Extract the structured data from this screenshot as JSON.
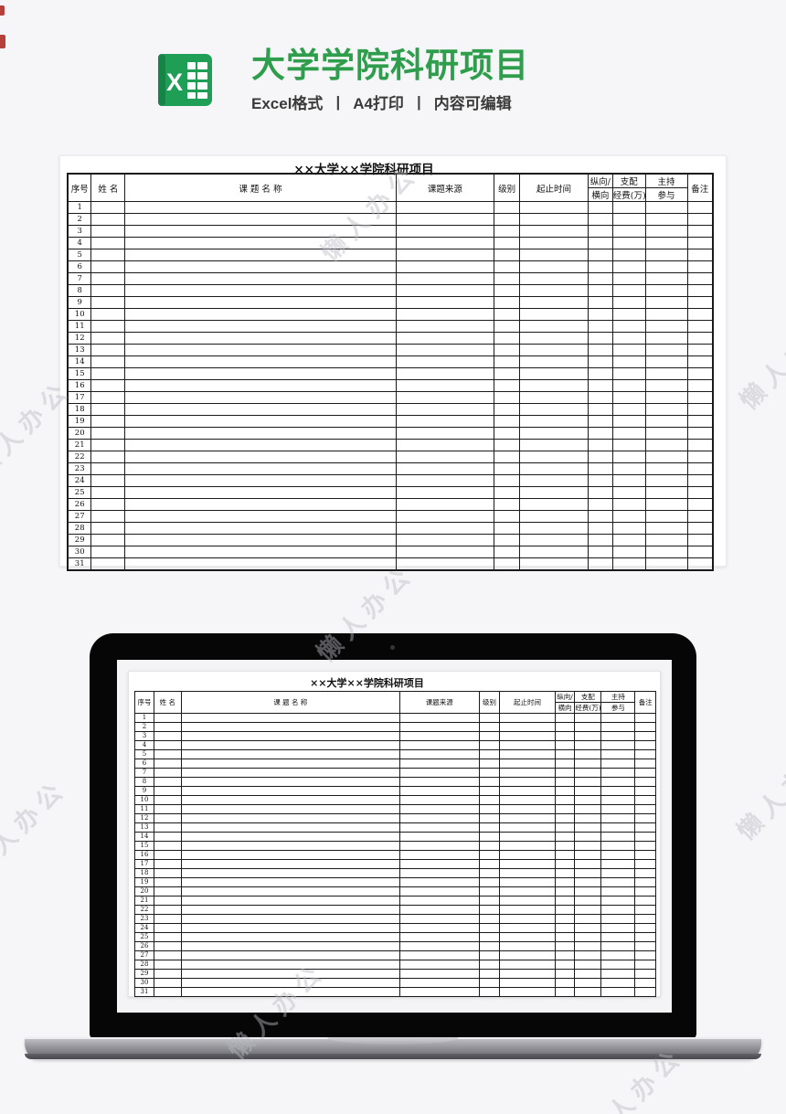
{
  "header": {
    "title": "大学学院科研项目",
    "subtitle": [
      "Excel格式",
      "A4打印",
      "内容可编辑"
    ],
    "separator": "|",
    "icon": "excel-logo",
    "accent_color": "#2e9e4c"
  },
  "document": {
    "title": "××大学××学院科研项目",
    "columns": [
      {
        "type": "single",
        "label": "序号"
      },
      {
        "type": "single",
        "label": "姓 名"
      },
      {
        "type": "single",
        "label": "课 题 名 称"
      },
      {
        "type": "single",
        "label": "课题来源"
      },
      {
        "type": "single",
        "label": "级别"
      },
      {
        "type": "single",
        "label": "起止时间"
      },
      {
        "type": "split",
        "label_top": "纵向/",
        "label_bottom": "横向"
      },
      {
        "type": "split",
        "label_top": "支配",
        "label_bottom": "经费(万)"
      },
      {
        "type": "split",
        "label_top": "主持",
        "label_bottom": "参与"
      },
      {
        "type": "single",
        "label": "备注"
      }
    ],
    "row_numbers": [
      "1",
      "2",
      "3",
      "4",
      "5",
      "6",
      "7",
      "8",
      "9",
      "10",
      "11",
      "12",
      "13",
      "14",
      "15",
      "16",
      "17",
      "18",
      "19",
      "20",
      "21",
      "22",
      "23",
      "24",
      "25",
      "26",
      "27",
      "28",
      "29",
      "30",
      "31"
    ],
    "cell_value": ""
  },
  "watermark": {
    "text": "懒人办公"
  },
  "colors": {
    "excel_green": "#1f9e55",
    "table_border": "#1a1a1a",
    "laptop_bezel": "#060607"
  }
}
